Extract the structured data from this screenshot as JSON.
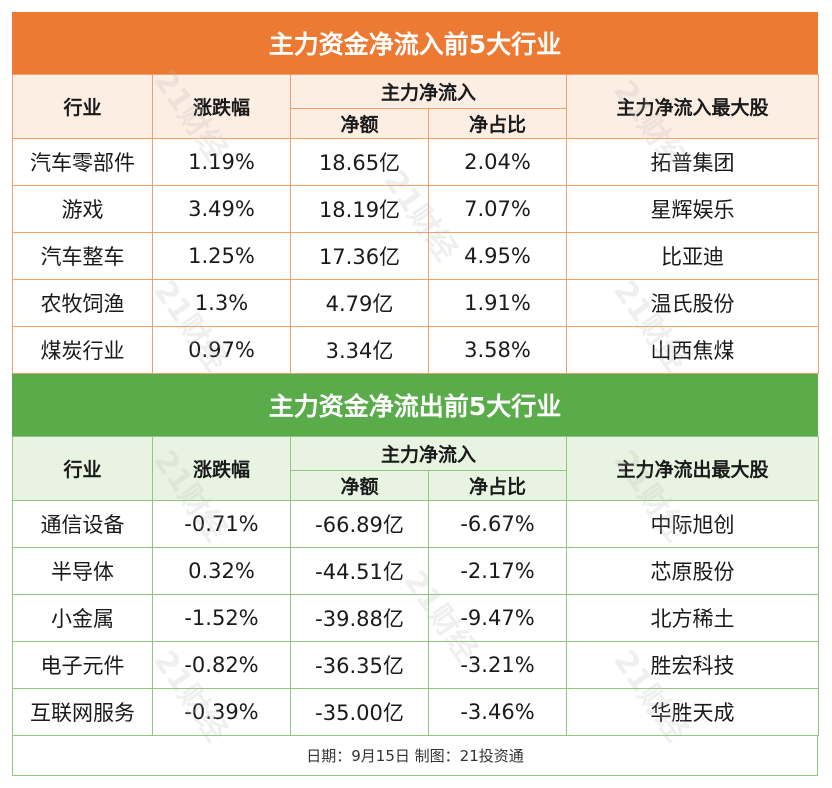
{
  "inflow": {
    "title": "主力资金净流入前5大行业",
    "headers": {
      "industry": "行业",
      "change": "涨跌幅",
      "flow_group": "主力净流入",
      "net_amount": "净额",
      "net_ratio": "净占比",
      "top_stock": "主力净流入最大股"
    },
    "rows": [
      {
        "industry": "汽车零部件",
        "change": "1.19%",
        "net_amount": "18.65亿",
        "net_ratio": "2.04%",
        "top_stock": "拓普集团"
      },
      {
        "industry": "游戏",
        "change": "3.49%",
        "net_amount": "18.19亿",
        "net_ratio": "7.07%",
        "top_stock": "星辉娱乐"
      },
      {
        "industry": "汽车整车",
        "change": "1.25%",
        "net_amount": "17.36亿",
        "net_ratio": "4.95%",
        "top_stock": "比亚迪"
      },
      {
        "industry": "农牧饲渔",
        "change": "1.3%",
        "net_amount": "4.79亿",
        "net_ratio": "1.91%",
        "top_stock": "温氏股份"
      },
      {
        "industry": "煤炭行业",
        "change": "0.97%",
        "net_amount": "3.34亿",
        "net_ratio": "3.58%",
        "top_stock": "山西焦煤"
      }
    ]
  },
  "outflow": {
    "title": "主力资金净流出前5大行业",
    "headers": {
      "industry": "行业",
      "change": "涨跌幅",
      "flow_group": "主力净流入",
      "net_amount": "净额",
      "net_ratio": "净占比",
      "top_stock": "主力净流出最大股"
    },
    "rows": [
      {
        "industry": "通信设备",
        "change": "-0.71%",
        "net_amount": "-66.89亿",
        "net_ratio": "-6.67%",
        "top_stock": "中际旭创"
      },
      {
        "industry": "半导体",
        "change": "0.32%",
        "net_amount": "-44.51亿",
        "net_ratio": "-2.17%",
        "top_stock": "芯原股份"
      },
      {
        "industry": "小金属",
        "change": "-1.52%",
        "net_amount": "-39.88亿",
        "net_ratio": "-9.47%",
        "top_stock": "北方稀土"
      },
      {
        "industry": "电子元件",
        "change": "-0.82%",
        "net_amount": "-36.35亿",
        "net_ratio": "-3.21%",
        "top_stock": "胜宏科技"
      },
      {
        "industry": "互联网服务",
        "change": "-0.39%",
        "net_amount": "-35.00亿",
        "net_ratio": "-3.46%",
        "top_stock": "华胜天成"
      }
    ]
  },
  "footer": "日期：9月15日 制图：21投资通",
  "watermark": "21财经",
  "colors": {
    "inflow_accent": "#ec7a33",
    "outflow_accent": "#5aac4a"
  }
}
